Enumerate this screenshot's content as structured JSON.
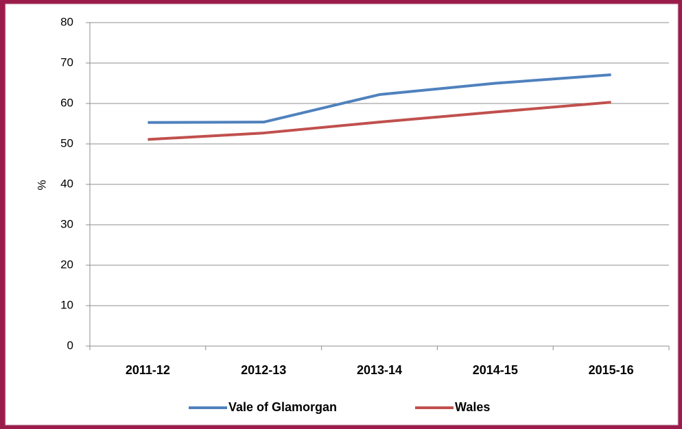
{
  "chart_data": {
    "type": "line",
    "y_label": "%",
    "categories": [
      "2011-12",
      "2012-13",
      "2013-14",
      "2014-15",
      "2015-16"
    ],
    "series": [
      {
        "name": "Vale of Glamorgan",
        "color": "#4f81bd",
        "values": [
          55.3,
          55.4,
          62.2,
          65.0,
          67.1
        ]
      },
      {
        "name": "Wales",
        "color": "#c0504d",
        "values": [
          51.1,
          52.7,
          55.4,
          57.9,
          60.3
        ]
      }
    ],
    "ylim": [
      0,
      80
    ],
    "yticks": [
      0,
      10,
      20,
      30,
      40,
      50,
      60,
      70,
      80
    ],
    "grid": true,
    "legend": "bottom"
  }
}
